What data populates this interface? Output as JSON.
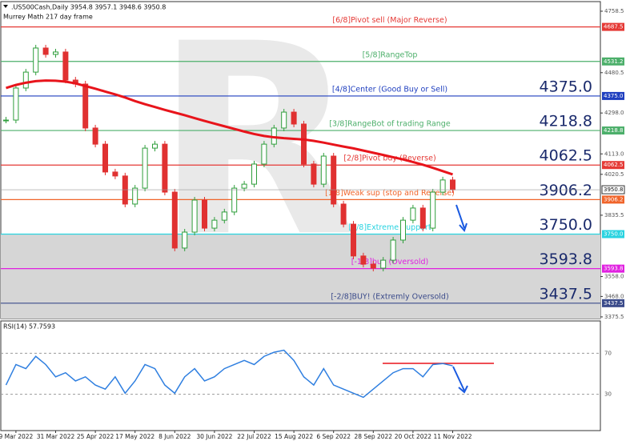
{
  "chart_data": [
    {
      "type": "candlestick",
      "title": ".US500Cash,Daily  3954.8 3957.1 3948.6 3950.8",
      "subtitle": "Murrey Math 217 day frame",
      "categories": [
        null,
        "9 Mar 2022",
        null,
        null,
        null,
        "31 Mar 2022",
        null,
        null,
        null,
        "25 Apr 2022",
        null,
        null,
        null,
        "17 May 2022",
        null,
        null,
        null,
        "8 Jun 2022",
        null,
        null,
        null,
        "30 Jun 2022",
        null,
        null,
        null,
        "22 Jul 2022",
        null,
        null,
        null,
        "15 Aug 2022",
        null,
        null,
        null,
        "6 Sep 2022",
        null,
        null,
        null,
        "28 Sep 2022",
        null,
        null,
        null,
        "20 Oct 2022",
        null,
        null,
        null,
        "11 Nov 2022"
      ],
      "series": [
        {
          "name": "Close",
          "color": "#2e9e3b",
          "down_color": "#e03131",
          "values": [
            4266,
            4411,
            4483,
            4592,
            4563,
            4574,
            4447,
            4429,
            4230,
            4157,
            4031,
            4013,
            3886,
            3958,
            4139,
            4157,
            3940,
            3687,
            3759,
            3904,
            3777,
            3813,
            3850,
            3958,
            3976,
            4067,
            4157,
            4230,
            4302,
            4248,
            4067,
            3976,
            4103,
            3886,
            3795,
            3651,
            3614,
            3596,
            3632,
            3723,
            3813,
            3868,
            3777,
            3940,
            3995,
            3950.8
          ]
        },
        {
          "name": "MA",
          "color": "#e8141b",
          "values": [
            4411,
            4425,
            4435,
            4442,
            4445,
            4444,
            4440,
            4432,
            4420,
            4408,
            4395,
            4382,
            4368,
            4352,
            4338,
            4325,
            4312,
            4300,
            4288,
            4275,
            4262,
            4250,
            4238,
            4226,
            4214,
            4203,
            4194,
            4188,
            4184,
            4181,
            4178,
            4172,
            4164,
            4155,
            4146,
            4138,
            4128,
            4118,
            4108,
            4098,
            4088,
            4076,
            4064,
            4050,
            4035,
            4020
          ]
        }
      ],
      "current": 3950.8,
      "levels": [
        {
          "text": "[6/8]Pivot sell (Major Reverse)",
          "value": 4687.5,
          "color": "#e53935"
        },
        {
          "text": "[5/8]RangeTop",
          "value": 4531.2,
          "color": "#4caf6a"
        },
        {
          "text": "[4/8]Center (Good Buy or Sell)",
          "value": 4375,
          "label": "4375.0",
          "color": "#1f3fbf",
          "big": true
        },
        {
          "text": "[3/8]RangeBot of trading Range",
          "value": 4218.8,
          "color": "#4caf6a",
          "big": true
        },
        {
          "text": "[2/8]Pivot buy (Reverse)",
          "value": 4062.5,
          "color": "#e53935",
          "big": true
        },
        {
          "text": "[1/8]Weak sup (stop and Reverse)",
          "value": 3906.2,
          "color": "#f0642a",
          "big": true
        },
        {
          "text": "[0/8]Extreme Support",
          "value": 3750,
          "label": "3750.0",
          "color": "#29d3e0",
          "big": true
        },
        {
          "text": "[-1/8]buy (Oversold)",
          "value": 3593.8,
          "color": "#e020e0",
          "big": true
        },
        {
          "text": "[-2/8]BUY! (Extremly Oversold)",
          "value": 3437.5,
          "color": "#3a4a8a",
          "big": true
        }
      ],
      "ylim": [
        3368,
        4802
      ],
      "yticks": [
        4758.5,
        4480.5,
        {
          "value": 4298,
          "label": "4298.0"
        },
        {
          "value": 4113,
          "label": "4113.0"
        },
        4020.5,
        3835.5,
        {
          "value": 3558,
          "label": "3558.0"
        },
        {
          "value": 3468,
          "label": "3468.0"
        },
        3375.5
      ]
    },
    {
      "type": "line",
      "title": "RSI(14) 57.7593",
      "series": [
        {
          "name": "RSI",
          "color": "#2f7fe0",
          "values": [
            39,
            59,
            55,
            67,
            59,
            47,
            51,
            43,
            47,
            39,
            35,
            47,
            31,
            43,
            59,
            55,
            39,
            31,
            47,
            55,
            43,
            47,
            55,
            59,
            63,
            59,
            67,
            71,
            73,
            63,
            47,
            39,
            55,
            39,
            35,
            31,
            27,
            35,
            43,
            51,
            55,
            55,
            47,
            59,
            60,
            57.7593
          ]
        }
      ],
      "ylim": [
        0,
        100
      ],
      "yticks": [
        70,
        30
      ]
    }
  ]
}
